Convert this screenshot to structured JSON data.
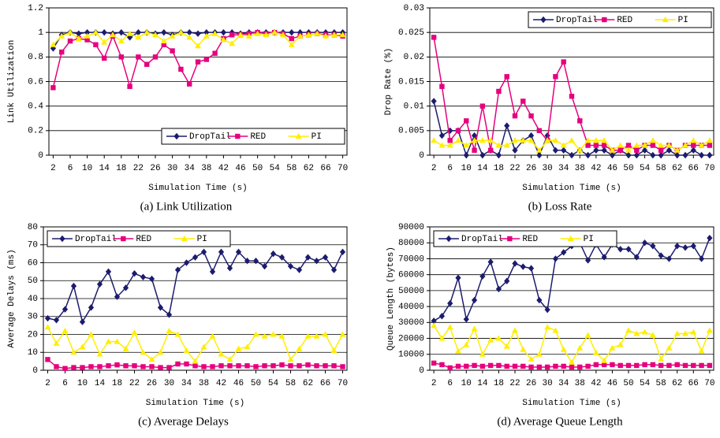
{
  "chart_data": [
    {
      "type": "line",
      "caption": "(a) Link Utilization",
      "xlabel": "Simulation Time (s)",
      "ylabel": "Link Utilization",
      "x": [
        2,
        4,
        6,
        8,
        10,
        12,
        14,
        16,
        18,
        20,
        22,
        24,
        26,
        28,
        30,
        32,
        34,
        36,
        38,
        40,
        42,
        44,
        46,
        48,
        50,
        52,
        54,
        56,
        58,
        60,
        62,
        64,
        66,
        68,
        70
      ],
      "xlim": [
        1,
        71
      ],
      "xticks": [
        2,
        6,
        10,
        14,
        18,
        22,
        26,
        30,
        34,
        38,
        42,
        46,
        50,
        54,
        58,
        62,
        66,
        70
      ],
      "ylim": [
        0,
        1.2
      ],
      "yticks": [
        0,
        0.2,
        0.4,
        0.6,
        0.8,
        1,
        1.2
      ],
      "grid": true,
      "legend": "lower right",
      "series": [
        {
          "name": "DropTail",
          "color": "#1c1c6e",
          "marker": "diamond",
          "values": [
            0.87,
            0.98,
            1,
            0.99,
            1,
            1,
            1,
            0.99,
            1,
            0.96,
            1,
            1,
            0.99,
            1,
            0.98,
            1,
            1,
            0.99,
            1,
            1,
            1,
            1,
            0.99,
            1,
            1,
            1,
            1,
            1,
            1,
            1,
            1,
            1,
            1,
            1,
            1
          ]
        },
        {
          "name": "RED",
          "color": "#e6007e",
          "marker": "square",
          "values": [
            0.55,
            0.84,
            0.93,
            0.95,
            0.94,
            0.9,
            0.79,
            0.97,
            0.8,
            0.56,
            0.8,
            0.74,
            0.8,
            0.9,
            0.85,
            0.7,
            0.58,
            0.76,
            0.78,
            0.83,
            0.95,
            0.98,
            0.98,
            0.99,
            1,
            0.99,
            1,
            0.99,
            0.95,
            0.97,
            0.98,
            0.99,
            0.98,
            0.98,
            0.97
          ]
        },
        {
          "name": "PI",
          "color": "#ffee00",
          "marker": "triangle",
          "values": [
            0.9,
            0.97,
            1,
            0.95,
            0.97,
            1,
            0.92,
            0.98,
            0.93,
            0.99,
            0.96,
            1,
            0.98,
            0.93,
            0.97,
            1,
            0.96,
            0.89,
            0.97,
            0.99,
            0.94,
            0.91,
            0.98,
            0.97,
            0.99,
            0.98,
            1,
            0.98,
            0.9,
            0.97,
            0.98,
            0.99,
            0.97,
            0.98,
            0.98
          ]
        }
      ]
    },
    {
      "type": "line",
      "caption": "(b) Loss Rate",
      "xlabel": "Simulation Time (s)",
      "ylabel": "Drop Rate (%)",
      "x": [
        2,
        4,
        6,
        8,
        10,
        12,
        14,
        16,
        18,
        20,
        22,
        24,
        26,
        28,
        30,
        32,
        34,
        36,
        38,
        40,
        42,
        44,
        46,
        48,
        50,
        52,
        54,
        56,
        58,
        60,
        62,
        64,
        66,
        68,
        70
      ],
      "xlim": [
        1,
        71
      ],
      "xticks": [
        2,
        6,
        10,
        14,
        18,
        22,
        26,
        30,
        34,
        38,
        42,
        46,
        50,
        54,
        58,
        62,
        66,
        70
      ],
      "ylim": [
        0,
        0.03
      ],
      "yticks": [
        0,
        0.005,
        0.01,
        0.015,
        0.02,
        0.025,
        0.03
      ],
      "grid": true,
      "legend": "upper right",
      "series": [
        {
          "name": "DropTail",
          "color": "#1c1c6e",
          "marker": "diamond",
          "values": [
            0.011,
            0.004,
            0.005,
            0.005,
            0,
            0.004,
            0,
            0.001,
            0,
            0.006,
            0.001,
            0.003,
            0.004,
            0,
            0.004,
            0.001,
            0.001,
            0,
            0.001,
            0,
            0.001,
            0.001,
            0,
            0.001,
            0,
            0,
            0.001,
            0,
            0,
            0.001,
            0,
            0,
            0.001,
            0,
            0
          ]
        },
        {
          "name": "RED",
          "color": "#e6007e",
          "marker": "square",
          "values": [
            0.024,
            0.014,
            0.003,
            0.005,
            0.007,
            0.001,
            0.01,
            0.001,
            0.013,
            0.016,
            0.008,
            0.011,
            0.008,
            0.005,
            0.003,
            0.016,
            0.019,
            0.012,
            0.007,
            0.002,
            0.002,
            0.002,
            0.001,
            0.001,
            0.002,
            0.001,
            0.002,
            0.002,
            0.001,
            0.002,
            0.001,
            0.002,
            0.002,
            0.002,
            0.002
          ]
        },
        {
          "name": "PI",
          "color": "#ffee00",
          "marker": "triangle",
          "values": [
            0.003,
            0.002,
            0.002,
            0.003,
            0.002,
            0.003,
            0.003,
            0.003,
            0.002,
            0.002,
            0.003,
            0.003,
            0.003,
            0.001,
            0.003,
            0.003,
            0.002,
            0.003,
            0.001,
            0.003,
            0.003,
            0.003,
            0.001,
            0.002,
            0.001,
            0.002,
            0.002,
            0.003,
            0.002,
            0.002,
            0.001,
            0.002,
            0.003,
            0.002,
            0.003
          ]
        }
      ]
    },
    {
      "type": "line",
      "caption": "(c) Average Delays",
      "xlabel": "Simulation Time (s)",
      "ylabel": "Average Delays (ms)",
      "x": [
        2,
        4,
        6,
        8,
        10,
        12,
        14,
        16,
        18,
        20,
        22,
        24,
        26,
        28,
        30,
        32,
        34,
        36,
        38,
        40,
        42,
        44,
        46,
        48,
        50,
        52,
        54,
        56,
        58,
        60,
        62,
        64,
        66,
        68,
        70
      ],
      "xlim": [
        1,
        71
      ],
      "xticks": [
        2,
        6,
        10,
        14,
        18,
        22,
        26,
        30,
        34,
        38,
        42,
        46,
        50,
        54,
        58,
        62,
        66,
        70
      ],
      "ylim": [
        0,
        80
      ],
      "yticks": [
        0,
        10,
        20,
        30,
        40,
        50,
        60,
        70,
        80
      ],
      "grid": true,
      "legend": "upper left",
      "series": [
        {
          "name": "DropTail",
          "color": "#1c1c6e",
          "marker": "diamond",
          "values": [
            29,
            28,
            34,
            47,
            27,
            35,
            48,
            55,
            41,
            46,
            54,
            52,
            51,
            35,
            31,
            56,
            60,
            63,
            66,
            55,
            66,
            57,
            66,
            61,
            61,
            58,
            65,
            63,
            58,
            56,
            63,
            61,
            63,
            56,
            66
          ]
        },
        {
          "name": "RED",
          "color": "#e6007e",
          "marker": "square",
          "values": [
            6,
            2,
            1,
            1.5,
            1.5,
            2,
            2,
            2.5,
            3,
            2.5,
            2.5,
            2,
            2,
            1.5,
            1.5,
            3.5,
            3.5,
            2.5,
            2,
            2,
            2.5,
            2.5,
            2.5,
            2.5,
            2,
            2.5,
            2.5,
            3,
            2.5,
            2.5,
            3,
            2.5,
            2.5,
            2.5,
            2
          ]
        },
        {
          "name": "PI",
          "color": "#ffee00",
          "marker": "triangle",
          "values": [
            24,
            15,
            22,
            10,
            13,
            20,
            9,
            16,
            16,
            12,
            21,
            10,
            6,
            10,
            22,
            20,
            11,
            5,
            13,
            19,
            9,
            6,
            12,
            13,
            20,
            19,
            20,
            19,
            6,
            12,
            19,
            19,
            20,
            11,
            20
          ]
        }
      ]
    },
    {
      "type": "line",
      "caption": "(d) Average Queue Length",
      "xlabel": "Simulation Time (s)",
      "ylabel": "Queue Length (bytes)",
      "x": [
        2,
        4,
        6,
        8,
        10,
        12,
        14,
        16,
        18,
        20,
        22,
        24,
        26,
        28,
        30,
        32,
        34,
        36,
        38,
        40,
        42,
        44,
        46,
        48,
        50,
        52,
        54,
        56,
        58,
        60,
        62,
        64,
        66,
        68,
        70
      ],
      "xlim": [
        1,
        71
      ],
      "xticks": [
        2,
        6,
        10,
        14,
        18,
        22,
        26,
        30,
        34,
        38,
        42,
        46,
        50,
        54,
        58,
        62,
        66,
        70
      ],
      "ylim": [
        0,
        90000
      ],
      "yticks": [
        0,
        10000,
        20000,
        30000,
        40000,
        50000,
        60000,
        70000,
        80000,
        90000
      ],
      "grid": true,
      "legend": "upper left",
      "series": [
        {
          "name": "DropTail",
          "color": "#1c1c6e",
          "marker": "diamond",
          "values": [
            31000,
            34000,
            42000,
            58000,
            32000,
            44000,
            59000,
            68000,
            51000,
            56000,
            67000,
            65000,
            64000,
            44000,
            38000,
            70000,
            74000,
            78000,
            80000,
            69000,
            79000,
            71000,
            79000,
            76000,
            76000,
            71000,
            80000,
            78000,
            72000,
            70000,
            78000,
            77000,
            78000,
            70000,
            83000
          ]
        },
        {
          "name": "RED",
          "color": "#e6007e",
          "marker": "square",
          "values": [
            4500,
            3500,
            1500,
            2500,
            2500,
            3000,
            2500,
            3000,
            3000,
            2500,
            2500,
            2500,
            2000,
            2000,
            2000,
            2500,
            2500,
            2000,
            2000,
            2500,
            3500,
            3500,
            3500,
            3000,
            3000,
            3000,
            3500,
            3500,
            3000,
            3000,
            3500,
            3000,
            3000,
            3000,
            3000
          ]
        },
        {
          "name": "PI",
          "color": "#ffee00",
          "marker": "triangle",
          "values": [
            28000,
            20000,
            27000,
            12000,
            16000,
            26000,
            10000,
            19000,
            20000,
            15000,
            25000,
            13000,
            7000,
            10000,
            27000,
            25000,
            13000,
            5000,
            14000,
            22000,
            11000,
            6000,
            14000,
            16000,
            25000,
            23000,
            24000,
            22000,
            7000,
            14000,
            23000,
            23000,
            24000,
            12000,
            25000
          ]
        }
      ]
    }
  ]
}
